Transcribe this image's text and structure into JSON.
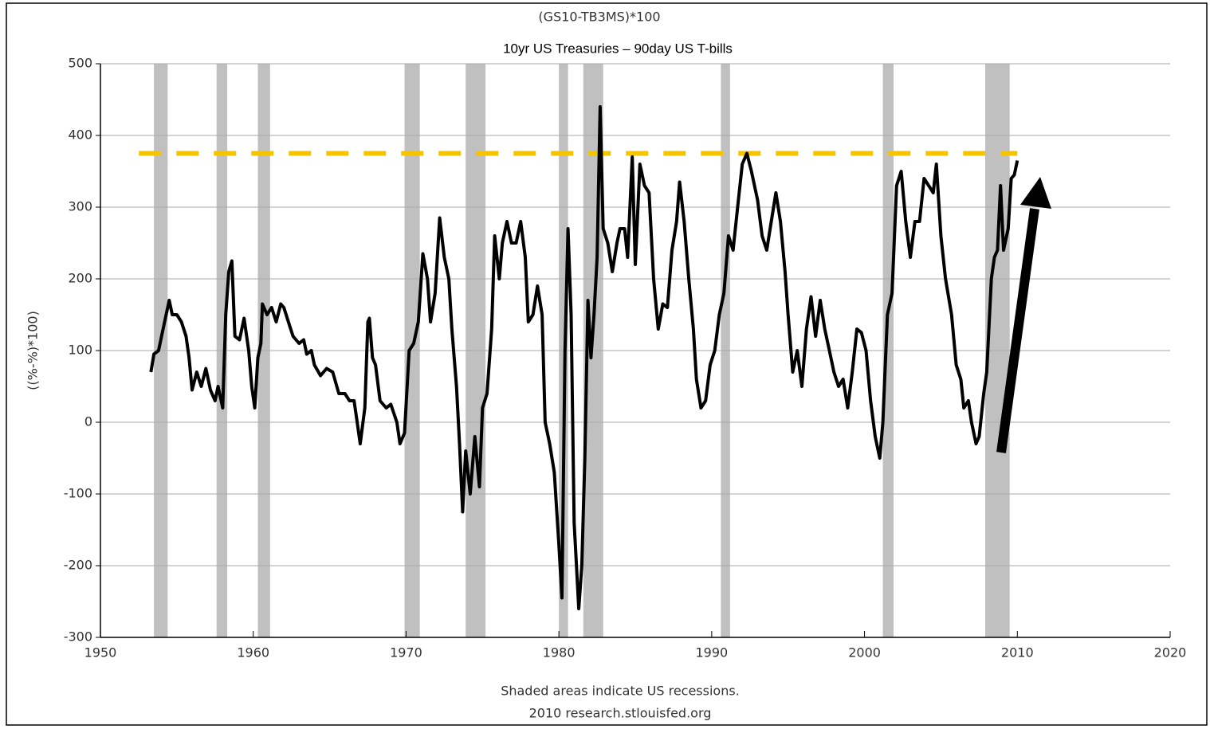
{
  "chart_data": {
    "type": "line",
    "title": "(GS10-TB3MS)*100",
    "subtitle": "10yr US Treasuries – 90day US T-bills",
    "ylabel": "((%-%)*100)",
    "notes": [
      "Shaded areas indicate US recessions.",
      "2010 research.stlouisfed.org"
    ],
    "color": "#000000",
    "xlim": [
      1950,
      2020
    ],
    "xticks": [
      1950,
      1960,
      1970,
      1980,
      1990,
      2000,
      2010,
      2020
    ],
    "ylim": [
      -300,
      500
    ],
    "yticks": [
      -300,
      -200,
      -100,
      0,
      100,
      200,
      300,
      400,
      500
    ],
    "grid": true,
    "recession_color": "#c0c0c0",
    "recessions": [
      [
        1953.5,
        1954.4
      ],
      [
        1957.6,
        1958.3
      ],
      [
        1960.3,
        1961.1
      ],
      [
        1969.9,
        1970.9
      ],
      [
        1973.9,
        1975.2
      ],
      [
        1980.0,
        1980.6
      ],
      [
        1981.6,
        1982.9
      ],
      [
        1990.6,
        1991.2
      ],
      [
        2001.2,
        2001.9
      ],
      [
        2007.9,
        2009.5
      ]
    ],
    "reference_line": {
      "value": 375,
      "color": "#f5c400"
    },
    "x": [
      1953.3,
      1953.5,
      1953.8,
      1954.0,
      1954.2,
      1954.5,
      1954.7,
      1955.0,
      1955.3,
      1955.6,
      1955.8,
      1956.0,
      1956.3,
      1956.6,
      1956.9,
      1957.2,
      1957.5,
      1957.7,
      1958.0,
      1958.2,
      1958.4,
      1958.6,
      1958.8,
      1959.1,
      1959.4,
      1959.7,
      1959.9,
      1960.1,
      1960.3,
      1960.5,
      1960.6,
      1960.9,
      1961.2,
      1961.5,
      1961.8,
      1962.0,
      1962.3,
      1962.6,
      1963.0,
      1963.3,
      1963.5,
      1963.8,
      1964.0,
      1964.4,
      1964.8,
      1965.2,
      1965.6,
      1966.0,
      1966.3,
      1966.6,
      1966.8,
      1967.0,
      1967.3,
      1967.5,
      1967.6,
      1967.8,
      1968.0,
      1968.3,
      1968.7,
      1969.0,
      1969.4,
      1969.6,
      1969.9,
      1970.2,
      1970.5,
      1970.8,
      1971.1,
      1971.4,
      1971.6,
      1971.9,
      1972.2,
      1972.5,
      1972.8,
      1973.0,
      1973.3,
      1973.5,
      1973.7,
      1973.9,
      1974.2,
      1974.5,
      1974.8,
      1975.0,
      1975.3,
      1975.6,
      1975.8,
      1976.1,
      1976.3,
      1976.6,
      1976.9,
      1977.2,
      1977.5,
      1977.8,
      1978.0,
      1978.3,
      1978.6,
      1978.9,
      1979.1,
      1979.4,
      1979.7,
      1980.0,
      1980.2,
      1980.4,
      1980.6,
      1980.8,
      1981.0,
      1981.3,
      1981.5,
      1981.7,
      1981.9,
      1982.1,
      1982.3,
      1982.5,
      1982.7,
      1982.9,
      1983.2,
      1983.5,
      1983.8,
      1984.0,
      1984.3,
      1984.5,
      1984.8,
      1985.0,
      1985.3,
      1985.6,
      1985.9,
      1986.2,
      1986.5,
      1986.8,
      1987.1,
      1987.4,
      1987.7,
      1987.9,
      1988.2,
      1988.5,
      1988.8,
      1989.0,
      1989.3,
      1989.6,
      1989.9,
      1990.2,
      1990.5,
      1990.8,
      1991.1,
      1991.4,
      1991.7,
      1992.0,
      1992.3,
      1992.6,
      1993.0,
      1993.3,
      1993.6,
      1993.9,
      1994.2,
      1994.5,
      1994.8,
      1995.0,
      1995.3,
      1995.6,
      1995.9,
      1996.2,
      1996.5,
      1996.8,
      1997.1,
      1997.4,
      1997.7,
      1998.0,
      1998.3,
      1998.6,
      1998.9,
      1999.2,
      1999.5,
      1999.8,
      2000.1,
      2000.4,
      2000.7,
      2001.0,
      2001.2,
      2001.5,
      2001.8,
      2002.1,
      2002.4,
      2002.7,
      2003.0,
      2003.3,
      2003.6,
      2003.9,
      2004.2,
      2004.5,
      2004.7,
      2005.0,
      2005.3,
      2005.7,
      2006.0,
      2006.3,
      2006.5,
      2006.8,
      2007.0,
      2007.3,
      2007.5,
      2007.8,
      2008.0,
      2008.3,
      2008.5,
      2008.7,
      2008.9,
      2009.1,
      2009.4,
      2009.6,
      2009.8,
      2010.0
    ],
    "values": [
      70,
      95,
      100,
      120,
      140,
      170,
      150,
      150,
      140,
      120,
      90,
      45,
      70,
      50,
      75,
      45,
      30,
      50,
      20,
      150,
      210,
      225,
      120,
      115,
      145,
      100,
      50,
      20,
      90,
      110,
      165,
      150,
      160,
      140,
      165,
      160,
      140,
      120,
      110,
      115,
      95,
      100,
      80,
      65,
      75,
      70,
      40,
      40,
      30,
      30,
      0,
      -30,
      20,
      140,
      145,
      90,
      80,
      30,
      20,
      25,
      0,
      -30,
      -15,
      100,
      110,
      140,
      235,
      200,
      140,
      180,
      285,
      230,
      200,
      130,
      50,
      -30,
      -125,
      -40,
      -100,
      -20,
      -90,
      20,
      40,
      130,
      260,
      200,
      250,
      280,
      250,
      250,
      280,
      230,
      140,
      150,
      190,
      150,
      0,
      -30,
      -70,
      -170,
      -245,
      100,
      270,
      150,
      -140,
      -260,
      -200,
      -50,
      170,
      90,
      150,
      230,
      440,
      270,
      250,
      210,
      250,
      270,
      270,
      230,
      370,
      220,
      360,
      330,
      320,
      200,
      130,
      165,
      160,
      240,
      280,
      335,
      280,
      200,
      130,
      60,
      20,
      30,
      80,
      100,
      150,
      180,
      260,
      240,
      300,
      360,
      375,
      350,
      310,
      260,
      240,
      280,
      320,
      280,
      210,
      150,
      70,
      100,
      50,
      130,
      175,
      120,
      170,
      130,
      100,
      70,
      50,
      60,
      20,
      70,
      130,
      125,
      100,
      30,
      -20,
      -50,
      0,
      150,
      180,
      330,
      350,
      280,
      230,
      280,
      280,
      340,
      330,
      320,
      360,
      260,
      200,
      150,
      80,
      60,
      20,
      30,
      0,
      -30,
      -20,
      40,
      70,
      200,
      230,
      240,
      330,
      240,
      270,
      340,
      345,
      365
    ]
  }
}
